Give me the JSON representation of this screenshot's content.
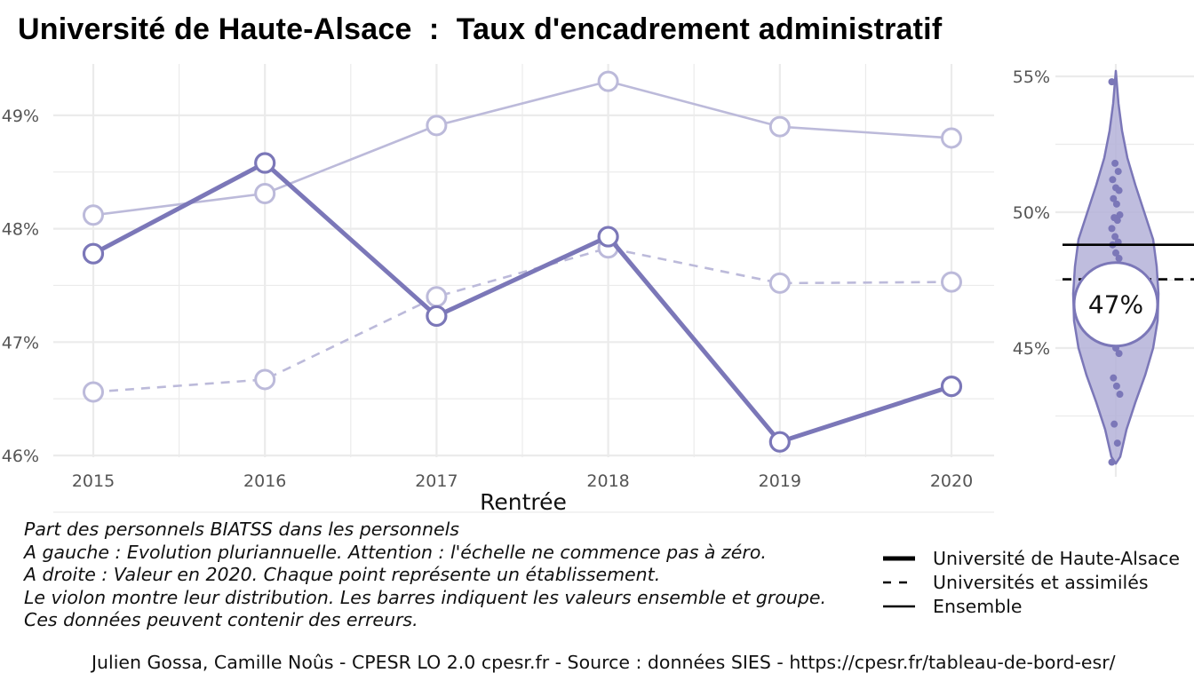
{
  "title": "Université de Haute-Alsace  :  Taux d'encadrement administratif",
  "colors": {
    "main": "#7b77b8",
    "light": "#bcbada",
    "violin_fill": "#b4b1d8",
    "grid": "#ebebeb",
    "ref": "#000000"
  },
  "chart_data": [
    {
      "type": "line",
      "x": [
        2015,
        2016,
        2017,
        2018,
        2019,
        2020
      ],
      "xlabel": "Rentrée",
      "ylabel": "",
      "ylim": [
        46,
        49.3
      ],
      "y_ticks": [
        "46%",
        "47%",
        "48%",
        "49%"
      ],
      "y_tick_values": [
        46,
        47,
        48,
        49
      ],
      "x_ticks": [
        "2015",
        "2016",
        "2017",
        "2018",
        "2019",
        "2020"
      ],
      "grid": true,
      "series": [
        {
          "name": "Université de Haute-Alsace",
          "values": [
            47.78,
            48.58,
            47.23,
            47.93,
            46.12,
            46.61
          ],
          "style": "solid-thick",
          "color": "#7b77b8"
        },
        {
          "name": "Universités et assimilés",
          "values": [
            46.56,
            46.67,
            47.4,
            47.83,
            47.52,
            47.53
          ],
          "style": "dashed",
          "color": "#bcbada"
        },
        {
          "name": "Ensemble",
          "values": [
            48.12,
            48.31,
            48.91,
            49.3,
            48.9,
            48.8
          ],
          "style": "solid-thin",
          "color": "#bcbada"
        }
      ]
    },
    {
      "type": "violin",
      "y_ticks": [
        "45%",
        "50%",
        "55%"
      ],
      "y_tick_values": [
        45,
        50,
        55
      ],
      "ylim": [
        40.8,
        55.2
      ],
      "highlight_label": "47%",
      "highlight_value": 46.61,
      "ensemble_value": 48.8,
      "groupe_value": 47.53,
      "points": [
        54.8,
        51.8,
        51.5,
        51.2,
        50.9,
        50.8,
        50.5,
        50.3,
        49.9,
        49.8,
        49.7,
        49.4,
        49.1,
        48.9,
        48.8,
        48.5,
        48.3,
        48.0,
        47.6,
        47.3,
        47.0,
        46.7,
        46.3,
        45.9,
        45.5,
        45.2,
        45.0,
        44.8,
        43.9,
        43.6,
        43.3,
        42.2,
        41.5,
        40.8
      ]
    }
  ],
  "notes": [
    "Part des personnels BIATSS dans les personnels",
    "A gauche : Evolution pluriannuelle. Attention : l'échelle ne commence pas à zéro.",
    "A droite : Valeur en 2020. Chaque point représente un établissement.",
    "Le violon montre leur distribution. Les barres indiquent les valeurs ensemble et groupe.",
    "Ces données peuvent contenir des erreurs."
  ],
  "legend": [
    {
      "label": "Université de Haute-Alsace",
      "style": "solid-thick"
    },
    {
      "label": "Universités et assimilés",
      "style": "dashed"
    },
    {
      "label": "Ensemble",
      "style": "solid-thin"
    }
  ],
  "caption": "Julien Gossa, Camille Noûs - CPESR LO 2.0 cpesr.fr - Source : données SIES - https://cpesr.fr/tableau-de-bord-esr/"
}
